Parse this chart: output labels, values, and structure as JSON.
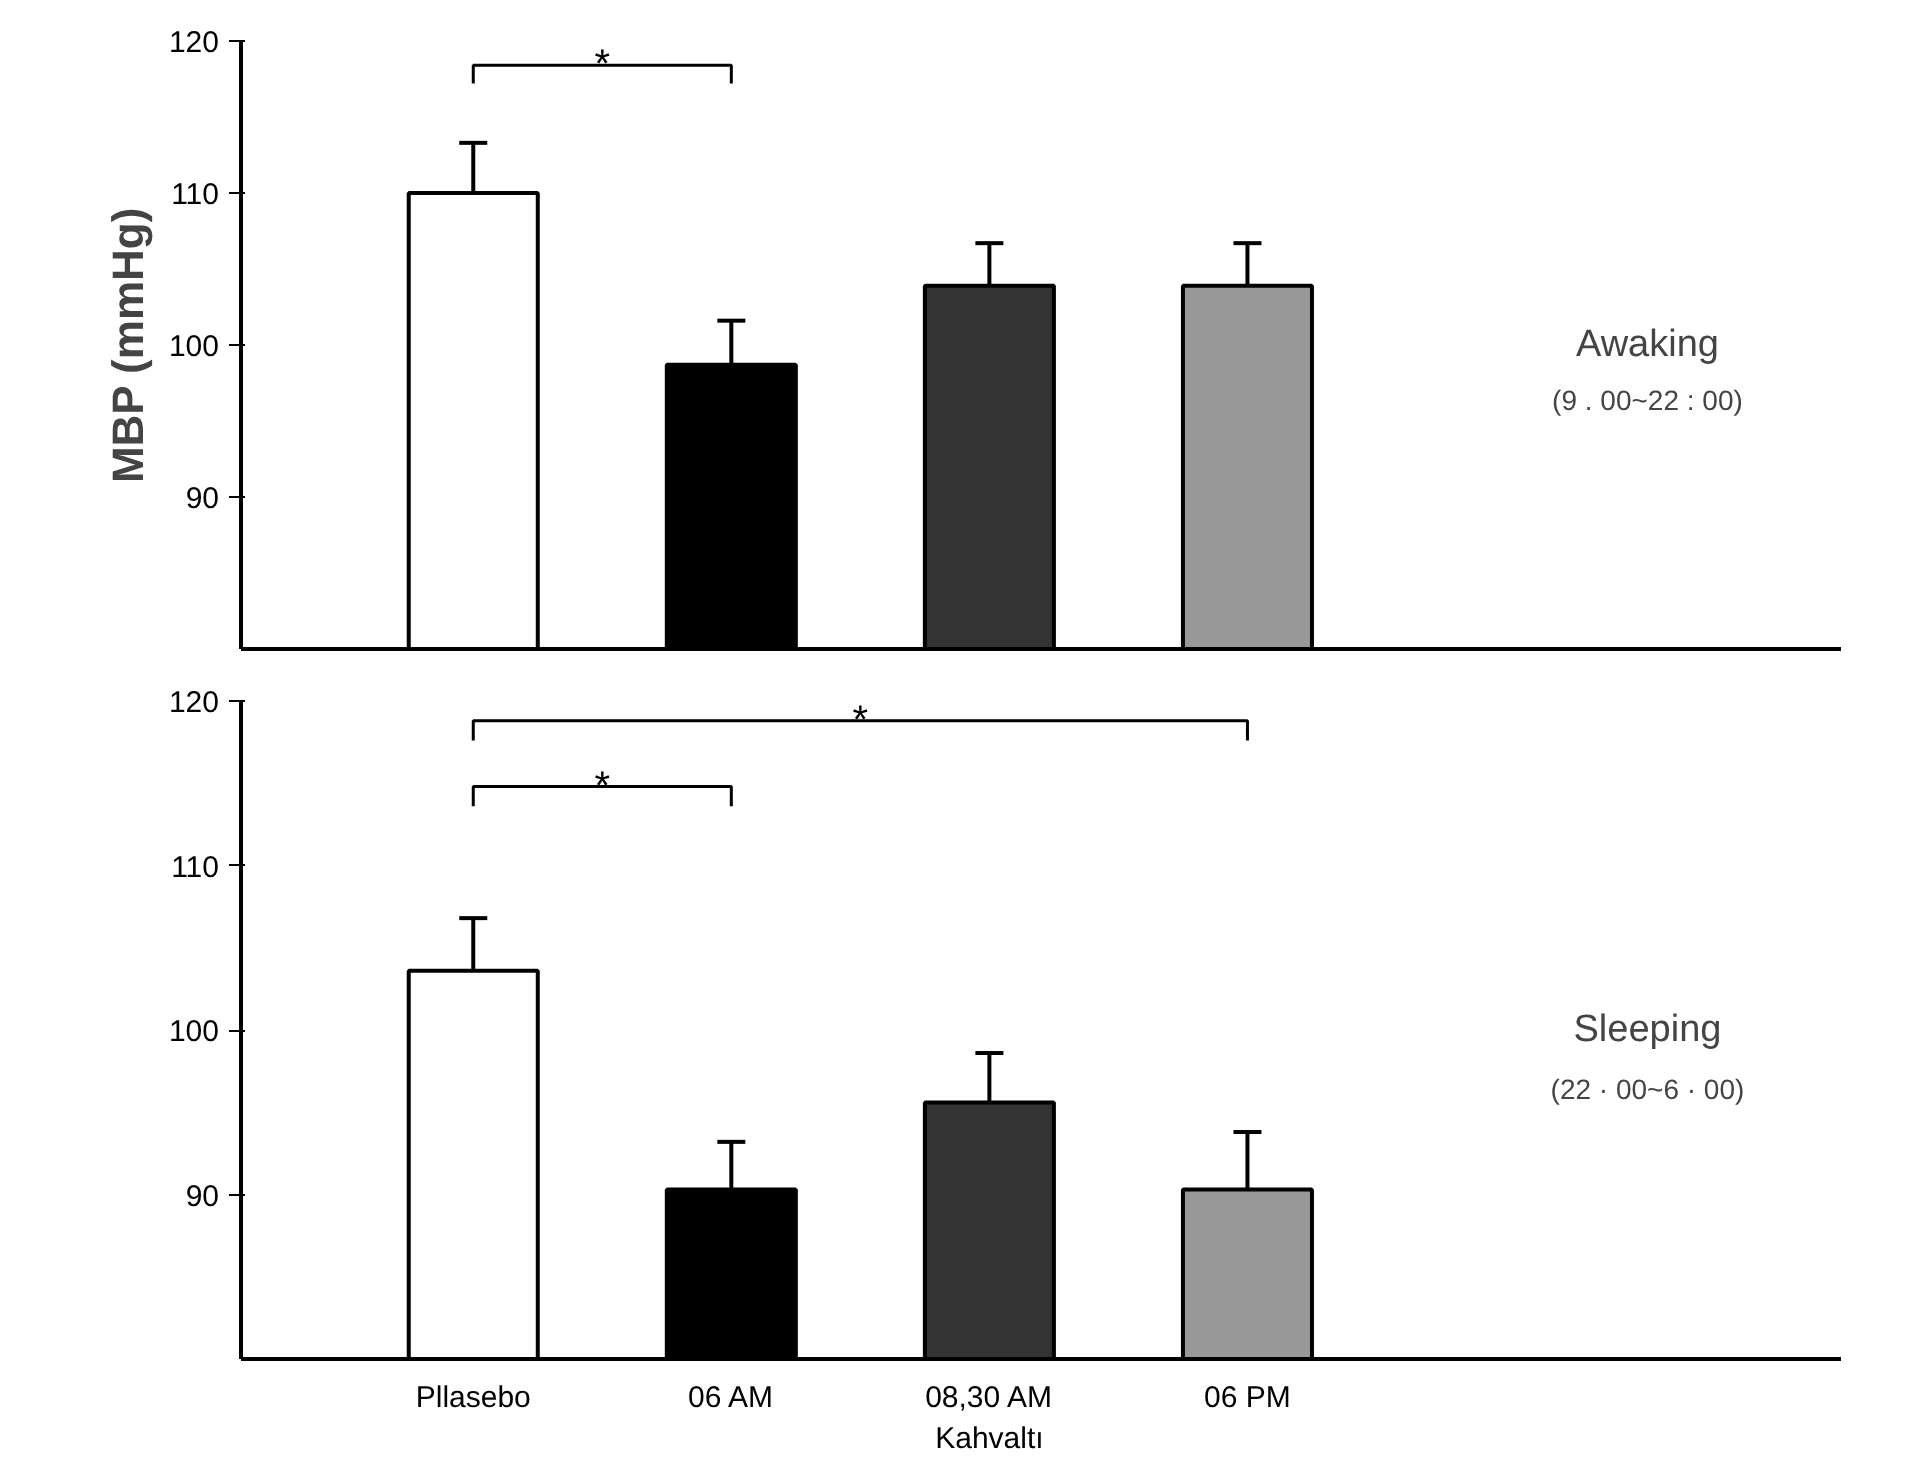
{
  "chart_data": [
    {
      "type": "bar",
      "categories": [
        null,
        null,
        null,
        null
      ],
      "values": [
        110,
        98.7,
        103.9,
        103.9
      ],
      "colors": [
        "#ffffff",
        "#000000",
        "#333333",
        "#999999"
      ],
      "errors": [
        [
          110,
          113.3
        ],
        [
          98.7,
          101.6
        ],
        [
          103.9,
          106.7
        ],
        [
          103.9,
          106.7
        ]
      ],
      "ylim": [
        80,
        120
      ],
      "yticks": [
        90,
        100,
        110,
        120
      ],
      "ylabel": "MBP (mmHg)",
      "tick_labels": "y",
      "grid": false,
      "annotations": [
        "*",
        "Awaking",
        "(9 . 00~22 : 00)"
      ]
    },
    {
      "type": "bar",
      "categories": [
        "Pllasebo",
        "06 AM",
        "08,30 AM\nKahvaltı",
        "06 PM"
      ],
      "values": [
        103.6,
        90.3,
        95.6,
        90.3
      ],
      "colors": [
        "#ffffff",
        "#000000",
        "#333333",
        "#999999"
      ],
      "errors": [
        [
          103.6,
          106.8
        ],
        [
          90.3,
          93.2
        ],
        [
          95.6,
          98.6
        ],
        [
          90.3,
          93.8
        ]
      ],
      "ylim": [
        80,
        120
      ],
      "yticks": [
        90,
        100,
        110,
        120
      ],
      "grid": false,
      "annotations": [
        "*",
        "*",
        "Sleeping",
        "(22 · 00~6 · 00)"
      ]
    }
  ]
}
